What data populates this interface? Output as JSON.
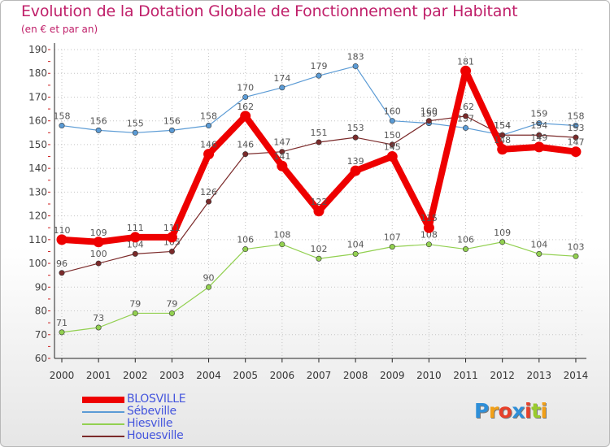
{
  "chart_data": {
    "type": "line",
    "title": "Evolution de la Dotation Globale de Fonctionnement par Habitant",
    "subtitle": "(en € et par an)",
    "x": [
      "2000",
      "2001",
      "2002",
      "2003",
      "2004",
      "2005",
      "2006",
      "2007",
      "2008",
      "2009",
      "2010",
      "2011",
      "2012",
      "2013",
      "2014"
    ],
    "ylim": [
      60,
      190
    ],
    "yticks": [
      "60",
      "70",
      "80",
      "90",
      "100",
      "110",
      "120",
      "130",
      "140",
      "150",
      "160",
      "170",
      "180",
      "190"
    ],
    "legend_position": "bottom-left",
    "series": [
      {
        "name": "Sébeville",
        "color": "#5b9bd5",
        "values": [
          158,
          156,
          155,
          156,
          158,
          170,
          174,
          179,
          183,
          160,
          159,
          157,
          154,
          159,
          158
        ],
        "labels": [
          "158",
          "156",
          "155",
          "156",
          "158",
          "170",
          "174",
          "179",
          "183",
          "160",
          "159",
          "157",
          "154",
          "159",
          "158"
        ]
      },
      {
        "name": "Hiesville",
        "color": "#92d050",
        "values": [
          71,
          73,
          79,
          79,
          90,
          106,
          108,
          102,
          104,
          107,
          108,
          106,
          109,
          104,
          103
        ],
        "labels": [
          "71",
          "73",
          "79",
          "79",
          "90",
          "106",
          "108",
          "102",
          "104",
          "107",
          "108",
          "106",
          "109",
          "104",
          "103"
        ]
      },
      {
        "name": "Houesville",
        "color": "#7b2a2a",
        "values": [
          96,
          100,
          104,
          105,
          126,
          146,
          147,
          151,
          153,
          150,
          160,
          162,
          154,
          154,
          153
        ],
        "labels": [
          "96",
          "100",
          "104",
          "105",
          "126",
          "146",
          "147",
          "151",
          "153",
          "150",
          "160",
          "162",
          "154",
          "154",
          "153"
        ]
      },
      {
        "name": "BLOSVILLE",
        "color": "#ee0000",
        "values": [
          110,
          109,
          111,
          111,
          146,
          162,
          141,
          122,
          139,
          145,
          115,
          181,
          148,
          149,
          147
        ],
        "labels": [
          "110",
          "109",
          "111",
          "111",
          "146",
          "162",
          "141",
          "122",
          "139",
          "145",
          "115",
          "181",
          "148",
          "149",
          "147"
        ]
      }
    ]
  },
  "legend": {
    "items": [
      {
        "label": "BLOSVILLE",
        "color": "#ee0000"
      },
      {
        "label": "Sébeville",
        "color": "#5b9bd5"
      },
      {
        "label": "Hiesville",
        "color": "#92d050"
      },
      {
        "label": "Houesville",
        "color": "#7b2a2a"
      }
    ]
  },
  "logo": {
    "letters": [
      "P",
      "r",
      "o",
      "x",
      "i",
      "t",
      "i"
    ],
    "colors": [
      "#2f8fd8",
      "#f2a018",
      "#e8402a",
      "#2f8fd8",
      "#e8402a",
      "#9acb2e",
      "#f2a018"
    ]
  }
}
